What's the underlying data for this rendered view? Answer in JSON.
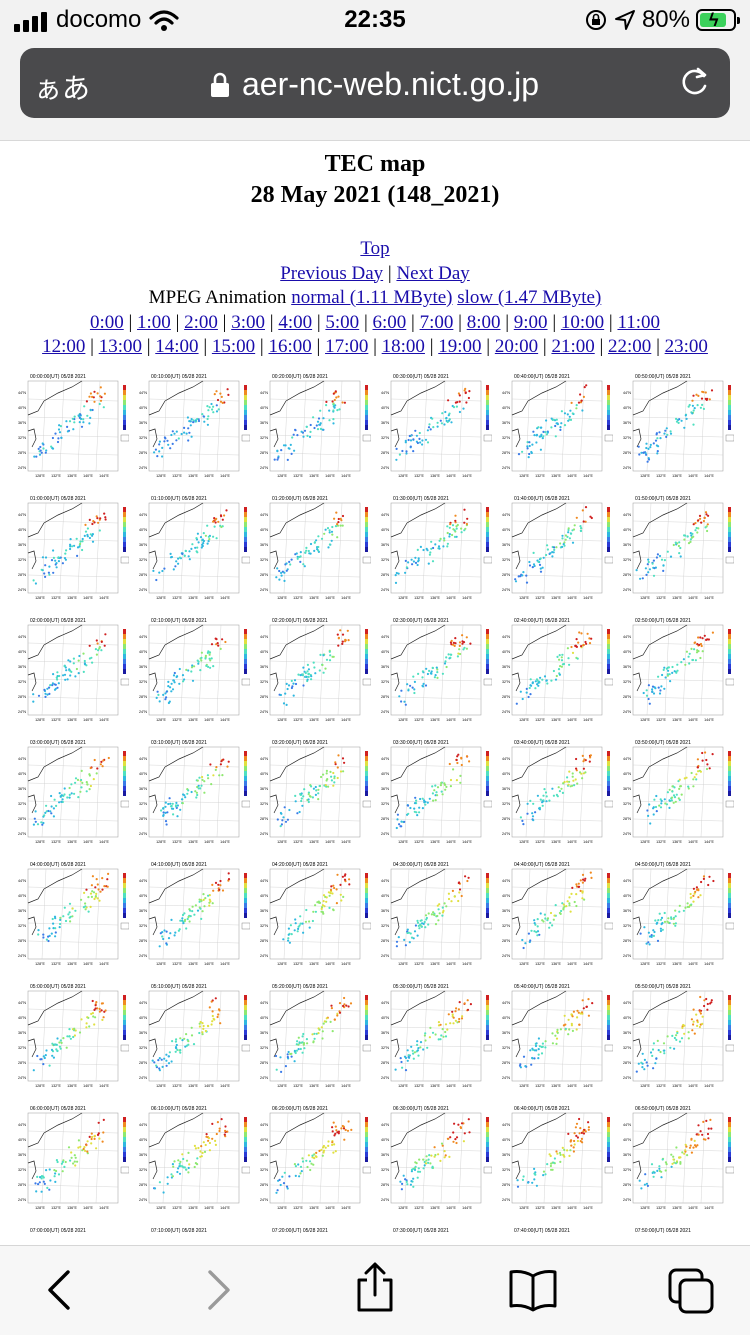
{
  "status": {
    "carrier": "docomo",
    "time": "22:35",
    "battery": "80%",
    "battery_level": 0.8
  },
  "browser": {
    "text_size": "ぁあ",
    "url": "aer-nc-web.nict.go.jp"
  },
  "page": {
    "title": "TEC map",
    "date": "28 May 2021 (148_2021)",
    "top_link": "Top",
    "prev_day": "Previous Day",
    "next_day": "Next Day",
    "mpeg_label": "MPEG Animation",
    "normal_link": "normal (1.11 MByte)",
    "slow_link": "slow (1.47 MByte)",
    "hours_row1": [
      "0:00",
      "1:00",
      "2:00",
      "3:00",
      "4:00",
      "5:00",
      "6:00",
      "7:00",
      "8:00",
      "9:00",
      "10:00",
      "11:00"
    ],
    "hours_row2": [
      "12:00",
      "13:00",
      "14:00",
      "15:00",
      "16:00",
      "17:00",
      "18:00",
      "19:00",
      "20:00",
      "21:00",
      "22:00",
      "23:00"
    ]
  },
  "maps": [
    [
      "00:00:00(UT) 05/28 2021",
      "00:10:00(UT) 05/28 2021",
      "00:20:00(UT) 05/28 2021",
      "00:30:00(UT) 05/28 2021",
      "00:40:00(UT) 05/28 2021",
      "00:50:00(UT) 05/28 2021"
    ],
    [
      "01:00:00(UT) 05/28 2021",
      "01:10:00(UT) 05/28 2021",
      "01:20:00(UT) 05/28 2021",
      "01:30:00(UT) 05/28 2021",
      "01:40:00(UT) 05/28 2021",
      "01:50:00(UT) 05/28 2021"
    ],
    [
      "02:00:00(UT) 05/28 2021",
      "02:10:00(UT) 05/28 2021",
      "02:20:00(UT) 05/28 2021",
      "02:30:00(UT) 05/28 2021",
      "02:40:00(UT) 05/28 2021",
      "02:50:00(UT) 05/28 2021"
    ],
    [
      "03:00:00(UT) 05/28 2021",
      "03:10:00(UT) 05/28 2021",
      "03:20:00(UT) 05/28 2021",
      "03:30:00(UT) 05/28 2021",
      "03:40:00(UT) 05/28 2021",
      "03:50:00(UT) 05/28 2021"
    ],
    [
      "04:00:00(UT) 05/28 2021",
      "04:10:00(UT) 05/28 2021",
      "04:20:00(UT) 05/28 2021",
      "04:30:00(UT) 05/28 2021",
      "04:40:00(UT) 05/28 2021",
      "04:50:00(UT) 05/28 2021"
    ],
    [
      "05:00:00(UT) 05/28 2021",
      "05:10:00(UT) 05/28 2021",
      "05:20:00(UT) 05/28 2021",
      "05:30:00(UT) 05/28 2021",
      "05:40:00(UT) 05/28 2021",
      "05:50:00(UT) 05/28 2021"
    ],
    [
      "06:00:00(UT) 05/28 2021",
      "06:10:00(UT) 05/28 2021",
      "06:20:00(UT) 05/28 2021",
      "06:30:00(UT) 05/28 2021",
      "06:40:00(UT) 05/28 2021",
      "06:50:00(UT) 05/28 2021"
    ],
    [
      "07:00:00(UT) 05/28 2021",
      "07:10:00(UT) 05/28 2021",
      "07:20:00(UT) 05/28 2021",
      "07:30:00(UT) 05/28 2021",
      "07:40:00(UT) 05/28 2021",
      "07:50:00(UT) 05/28 2021"
    ]
  ],
  "map_axes": {
    "lat": [
      "44°N",
      "40°N",
      "36°N",
      "32°N",
      "28°N",
      "24°N"
    ],
    "lon": [
      "128°E",
      "132°E",
      "136°E",
      "140°E",
      "144°E"
    ]
  },
  "toolbar": {
    "icons": [
      "back-icon",
      "forward-icon",
      "share-icon",
      "bookmarks-icon",
      "tabs-icon"
    ]
  }
}
